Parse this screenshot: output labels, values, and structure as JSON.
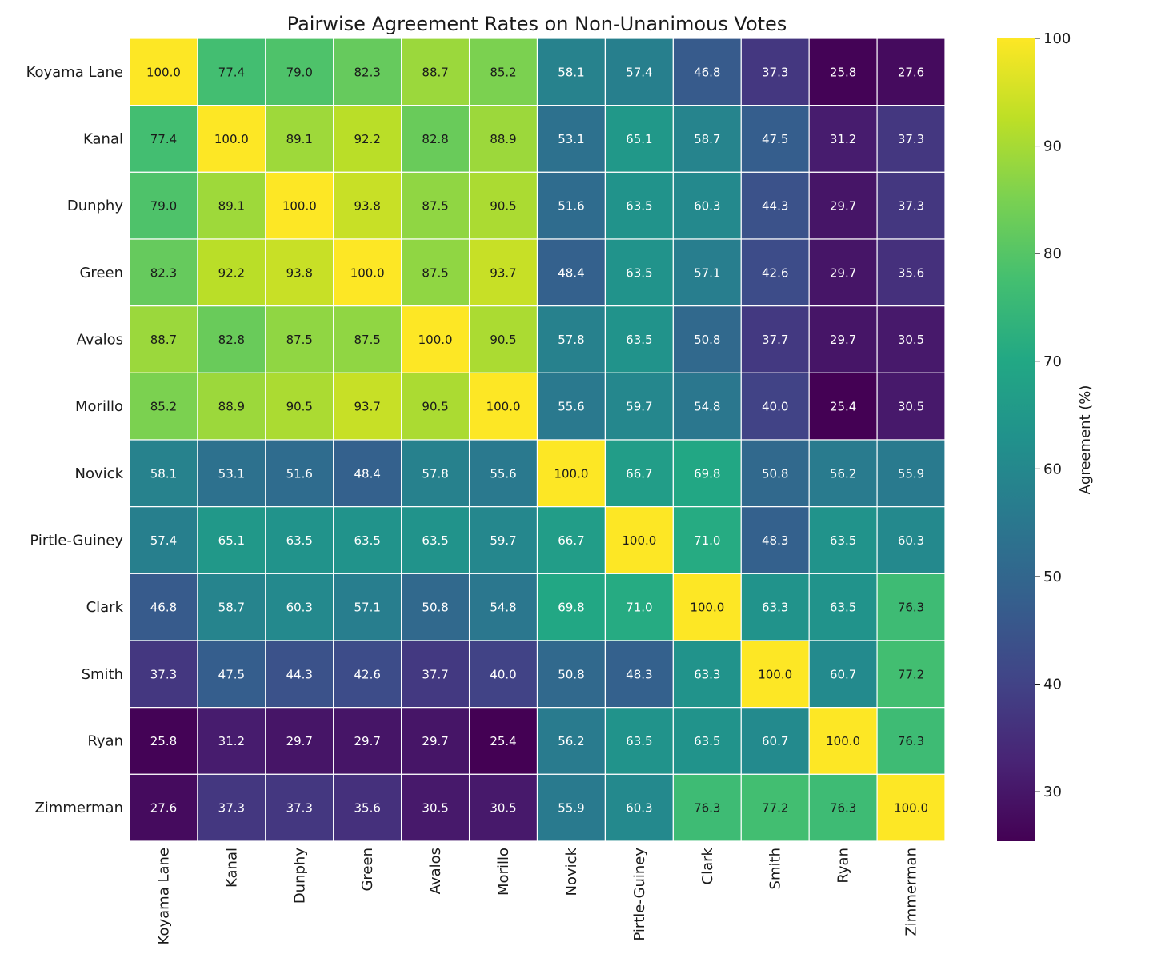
{
  "chart_data": {
    "type": "heatmap",
    "title": "Pairwise Agreement Rates on Non-Unanimous Votes",
    "row_labels": [
      "Koyama Lane",
      "Kanal",
      "Dunphy",
      "Green",
      "Avalos",
      "Morillo",
      "Novick",
      "Pirtle-Guiney",
      "Clark",
      "Smith",
      "Ryan",
      "Zimmerman"
    ],
    "col_labels": [
      "Koyama Lane",
      "Kanal",
      "Dunphy",
      "Green",
      "Avalos",
      "Morillo",
      "Novick",
      "Pirtle-Guiney",
      "Clark",
      "Smith",
      "Ryan",
      "Zimmerman"
    ],
    "values": [
      [
        100.0,
        77.4,
        79.0,
        82.3,
        88.7,
        85.2,
        58.1,
        57.4,
        46.8,
        37.3,
        25.8,
        27.6
      ],
      [
        77.4,
        100.0,
        89.1,
        92.2,
        82.8,
        88.9,
        53.1,
        65.1,
        58.7,
        47.5,
        31.2,
        37.3
      ],
      [
        79.0,
        89.1,
        100.0,
        93.8,
        87.5,
        90.5,
        51.6,
        63.5,
        60.3,
        44.3,
        29.7,
        37.3
      ],
      [
        82.3,
        92.2,
        93.8,
        100.0,
        87.5,
        93.7,
        48.4,
        63.5,
        57.1,
        42.6,
        29.7,
        35.6
      ],
      [
        88.7,
        82.8,
        87.5,
        87.5,
        100.0,
        90.5,
        57.8,
        63.5,
        50.8,
        37.7,
        29.7,
        30.5
      ],
      [
        85.2,
        88.9,
        90.5,
        93.7,
        90.5,
        100.0,
        55.6,
        59.7,
        54.8,
        40.0,
        25.4,
        30.5
      ],
      [
        58.1,
        53.1,
        51.6,
        48.4,
        57.8,
        55.6,
        100.0,
        66.7,
        69.8,
        50.8,
        56.2,
        55.9
      ],
      [
        57.4,
        65.1,
        63.5,
        63.5,
        63.5,
        59.7,
        66.7,
        100.0,
        71.0,
        48.3,
        63.5,
        60.3
      ],
      [
        46.8,
        58.7,
        60.3,
        57.1,
        50.8,
        54.8,
        69.8,
        71.0,
        100.0,
        63.3,
        63.5,
        76.3
      ],
      [
        37.3,
        47.5,
        44.3,
        42.6,
        37.7,
        40.0,
        50.8,
        48.3,
        63.3,
        100.0,
        60.7,
        77.2
      ],
      [
        25.8,
        31.2,
        29.7,
        29.7,
        29.7,
        25.4,
        56.2,
        63.5,
        63.5,
        60.7,
        100.0,
        76.3
      ],
      [
        27.6,
        37.3,
        37.3,
        35.6,
        30.5,
        30.5,
        55.9,
        60.3,
        76.3,
        77.2,
        76.3,
        100.0
      ]
    ],
    "value_format": "1 decimal",
    "colormap": "viridis",
    "vmin": 25.4,
    "vmax": 100,
    "colorbar": {
      "label": "Agreement (%)",
      "ticks": [
        30,
        40,
        50,
        60,
        70,
        80,
        90,
        100
      ],
      "placement": "right"
    },
    "grid": false
  }
}
